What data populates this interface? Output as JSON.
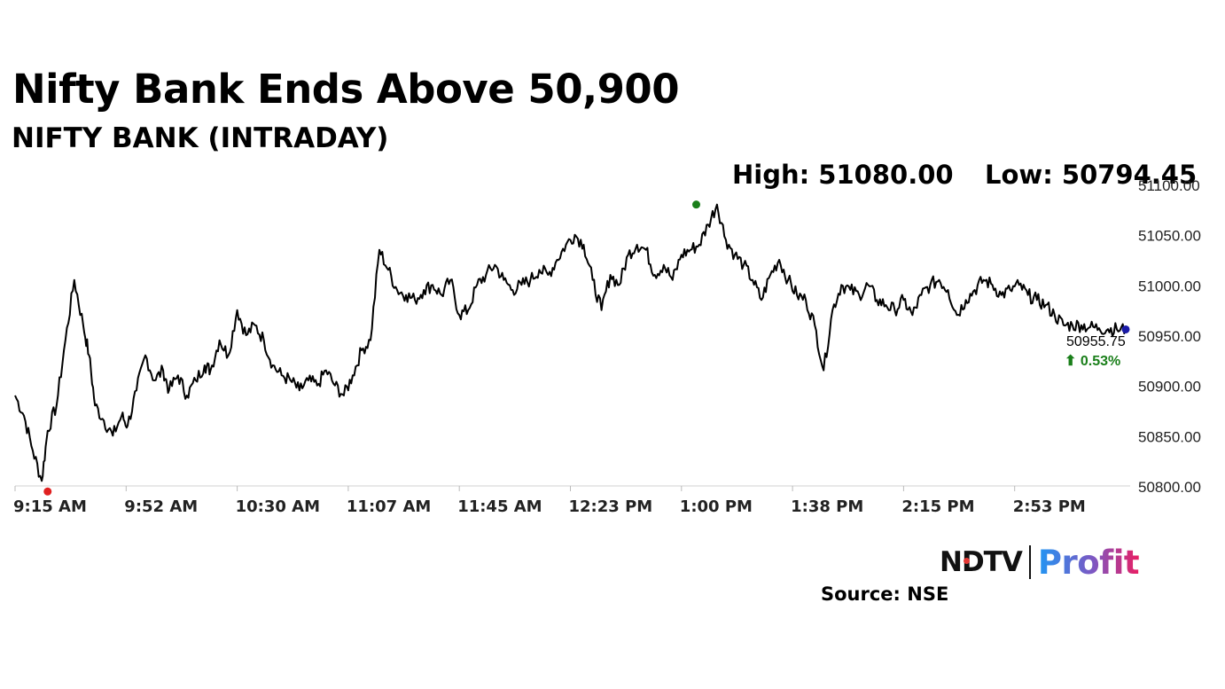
{
  "headline": "Nifty Bank Ends Above 50,900",
  "subtitle": "NIFTY BANK (INTRADAY)",
  "stats": {
    "high_label": "High: 51080.00",
    "low_label": "Low: 50794.45"
  },
  "last": {
    "value_label": "50955.75",
    "change_label": "⬆ 0.53%"
  },
  "logo": {
    "ndtv": "NDTV",
    "profit": "Profit"
  },
  "source": "Source: NSE",
  "colors": {
    "line": "#000000",
    "high_marker": "#1a7f1a",
    "low_marker": "#e02020",
    "last_marker": "#1a1aa8",
    "change": "#1a7f1a",
    "axis": "#d0d0d0"
  },
  "chart_data": {
    "type": "line",
    "title": "NIFTY BANK (INTRADAY)",
    "xlabel": "",
    "ylabel": "",
    "x_ticks": [
      "9:15 AM",
      "9:52 AM",
      "10:30 AM",
      "11:07 AM",
      "11:45 AM",
      "12:23 PM",
      "1:00 PM",
      "1:38 PM",
      "2:15 PM",
      "2:53 PM"
    ],
    "y_ticks": [
      "50800.00",
      "50850.00",
      "50900.00",
      "50950.00",
      "51000.00",
      "51050.00",
      "51100.00"
    ],
    "ylim": [
      50800,
      51100
    ],
    "x_unit": "minutes since 9:15 AM",
    "xlim": [
      0,
      375
    ],
    "series": [
      {
        "name": "NIFTY BANK",
        "x": [
          0,
          3,
          6,
          9,
          11,
          14,
          17,
          20,
          23,
          25,
          27,
          30,
          33,
          36,
          38,
          41,
          44,
          47,
          50,
          52,
          55,
          58,
          61,
          64,
          66,
          69,
          72,
          75,
          78,
          81,
          84,
          87,
          90,
          93,
          96,
          99,
          102,
          105,
          108,
          111,
          114,
          117,
          120,
          123,
          126,
          129,
          132,
          135,
          138,
          141,
          144,
          147,
          150,
          153,
          156,
          159,
          162,
          165,
          168,
          171,
          174,
          177,
          180,
          183,
          186,
          189,
          192,
          195,
          198,
          201,
          204,
          207,
          210,
          213,
          216,
          219,
          222,
          225,
          228,
          231,
          234,
          237,
          240,
          243,
          246,
          249,
          252,
          255,
          258,
          261,
          264,
          267,
          270,
          273,
          276,
          279,
          282,
          285,
          288,
          291,
          294,
          297,
          300,
          303,
          306,
          309,
          312,
          315,
          318,
          321,
          324,
          327,
          330,
          333,
          336,
          339,
          342,
          345,
          348,
          351,
          354,
          357,
          360,
          363,
          366,
          369,
          372,
          375
        ],
        "values": [
          50890,
          50870,
          50835,
          50805,
          50855,
          50880,
          50945,
          51005,
          50960,
          50930,
          50880,
          50865,
          50850,
          50870,
          50860,
          50895,
          50930,
          50905,
          50915,
          50895,
          50910,
          50890,
          50905,
          50920,
          50915,
          50945,
          50930,
          50975,
          50950,
          50960,
          50945,
          50920,
          50910,
          50905,
          50895,
          50905,
          50900,
          50915,
          50900,
          50890,
          50910,
          50935,
          50945,
          51035,
          51015,
          50995,
          50990,
          50985,
          50995,
          51000,
          50990,
          51005,
          50970,
          50975,
          51000,
          51010,
          51020,
          51005,
          50995,
          51000,
          51005,
          51015,
          51010,
          51025,
          51040,
          51050,
          51040,
          51005,
          50975,
          51010,
          51000,
          51030,
          51040,
          51035,
          51010,
          51020,
          51005,
          51030,
          51035,
          51040,
          51060,
          51080,
          51045,
          51030,
          51020,
          51005,
          50985,
          51010,
          51025,
          51005,
          50990,
          50985,
          50960,
          50915,
          50975,
          51000,
          50995,
          50990,
          51000,
          50985,
          50980,
          50975,
          50985,
          50970,
          50990,
          51000,
          51005,
          50995,
          50970,
          50985,
          50995,
          51005,
          51000,
          50990,
          50995,
          51000,
          50990,
          50985,
          50980,
          50970,
          50960,
          50960,
          50960,
          50958,
          50957,
          50956,
          50955.75,
          50955.75
        ]
      }
    ],
    "markers": [
      {
        "name": "High",
        "x": 230,
        "value": 51080.0
      },
      {
        "name": "Low",
        "x": 11,
        "value": 50794.45
      },
      {
        "name": "Last",
        "x": 375,
        "value": 50955.75
      }
    ]
  }
}
